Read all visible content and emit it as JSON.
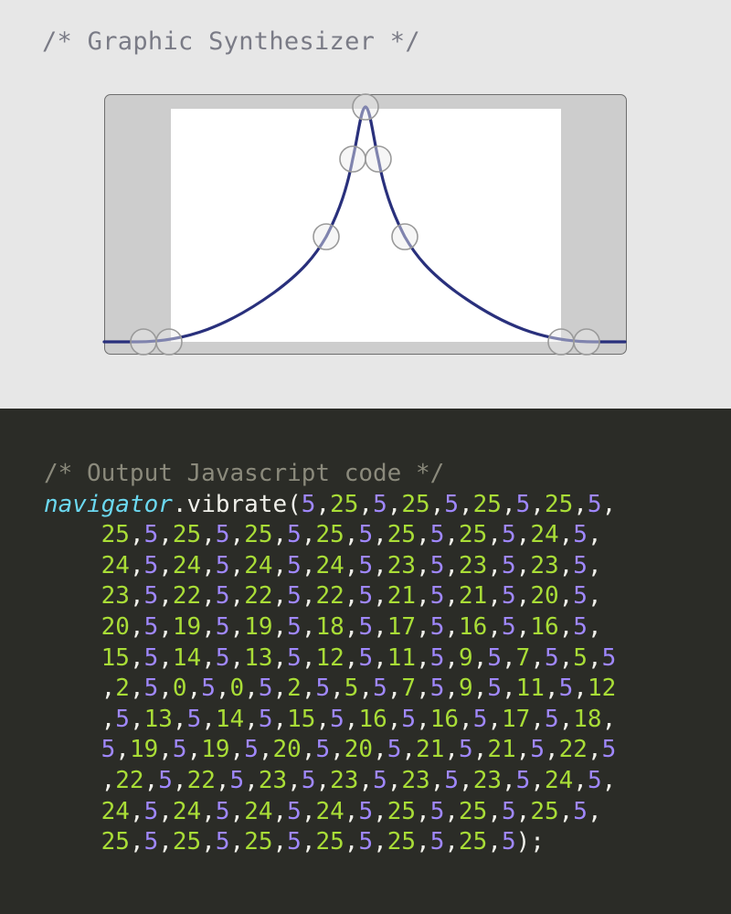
{
  "synth": {
    "comment": "/* Graphic Synthesizer */",
    "curve_color": "#29307c",
    "handle_color": "#9a9a9a"
  },
  "output": {
    "comment": "/* Output Javascript code */",
    "object": "navigator",
    "method": ".vibrate(",
    "close": ");",
    "colors": {
      "object": "#6bd8f0",
      "pattern_a": "#a9dd37",
      "pattern_b": "#a088ff",
      "punct": "#f0f0ea"
    },
    "lines": [
      [
        "5",
        ",",
        "25",
        ",",
        "5",
        ",",
        "25",
        ",",
        "5",
        ",",
        "25",
        ",",
        "5",
        ",",
        "25",
        ",",
        "5",
        ","
      ],
      [
        "25",
        ",",
        "5",
        ",",
        "25",
        ",",
        "5",
        ",",
        "25",
        ",",
        "5",
        ",",
        "25",
        ",",
        "5",
        ",",
        "25",
        ",",
        "5",
        ",",
        "25",
        ",",
        "5",
        ",",
        "24",
        ",",
        "5",
        ","
      ],
      [
        "24",
        ",",
        "5",
        ",",
        "24",
        ",",
        "5",
        ",",
        "24",
        ",",
        "5",
        ",",
        "24",
        ",",
        "5",
        ",",
        "23",
        ",",
        "5",
        ",",
        "23",
        ",",
        "5",
        ",",
        "23",
        ",",
        "5",
        ","
      ],
      [
        "23",
        ",",
        "5",
        ",",
        "22",
        ",",
        "5",
        ",",
        "22",
        ",",
        "5",
        ",",
        "22",
        ",",
        "5",
        ",",
        "21",
        ",",
        "5",
        ",",
        "21",
        ",",
        "5",
        ",",
        "20",
        ",",
        "5",
        ","
      ],
      [
        "20",
        ",",
        "5",
        ",",
        "19",
        ",",
        "5",
        ",",
        "19",
        ",",
        "5",
        ",",
        "18",
        ",",
        "5",
        ",",
        "17",
        ",",
        "5",
        ",",
        "16",
        ",",
        "5",
        ",",
        "16",
        ",",
        "5",
        ","
      ],
      [
        "15",
        ",",
        "5",
        ",",
        "14",
        ",",
        "5",
        ",",
        "13",
        ",",
        "5",
        ",",
        "12",
        ",",
        "5",
        ",",
        "11",
        ",",
        "5",
        ",",
        "9",
        ",",
        "5",
        ",",
        "7",
        ",",
        "5",
        ",",
        "5",
        ",",
        "5"
      ],
      [
        ",",
        "2",
        ",",
        "5",
        ",",
        "0",
        ",",
        "5",
        ",",
        "0",
        ",",
        "5",
        ",",
        "2",
        ",",
        "5",
        ",",
        "5",
        ",",
        "5",
        ",",
        "7",
        ",",
        "5",
        ",",
        "9",
        ",",
        "5",
        ",",
        "11",
        ",",
        "5",
        ",",
        "12"
      ],
      [
        ",",
        "5",
        ",",
        "13",
        ",",
        "5",
        ",",
        "14",
        ",",
        "5",
        ",",
        "15",
        ",",
        "5",
        ",",
        "16",
        ",",
        "5",
        ",",
        "16",
        ",",
        "5",
        ",",
        "17",
        ",",
        "5",
        ",",
        "18",
        ","
      ],
      [
        "5",
        ",",
        "19",
        ",",
        "5",
        ",",
        "19",
        ",",
        "5",
        ",",
        "20",
        ",",
        "5",
        ",",
        "20",
        ",",
        "5",
        ",",
        "21",
        ",",
        "5",
        ",",
        "21",
        ",",
        "5",
        ",",
        "22",
        ",",
        "5"
      ],
      [
        ",",
        "22",
        ",",
        "5",
        ",",
        "22",
        ",",
        "5",
        ",",
        "23",
        ",",
        "5",
        ",",
        "23",
        ",",
        "5",
        ",",
        "23",
        ",",
        "5",
        ",",
        "23",
        ",",
        "5",
        ",",
        "24",
        ",",
        "5",
        ","
      ],
      [
        "24",
        ",",
        "5",
        ",",
        "24",
        ",",
        "5",
        ",",
        "24",
        ",",
        "5",
        ",",
        "24",
        ",",
        "5",
        ",",
        "25",
        ",",
        "5",
        ",",
        "25",
        ",",
        "5",
        ",",
        "25",
        ",",
        "5",
        ","
      ],
      [
        "25",
        ",",
        "5",
        ",",
        "25",
        ",",
        "5",
        ",",
        "25",
        ",",
        "5",
        ",",
        "25",
        ",",
        "5",
        ",",
        "25",
        ",",
        "5",
        ",",
        "25",
        ",",
        "5"
      ]
    ]
  }
}
